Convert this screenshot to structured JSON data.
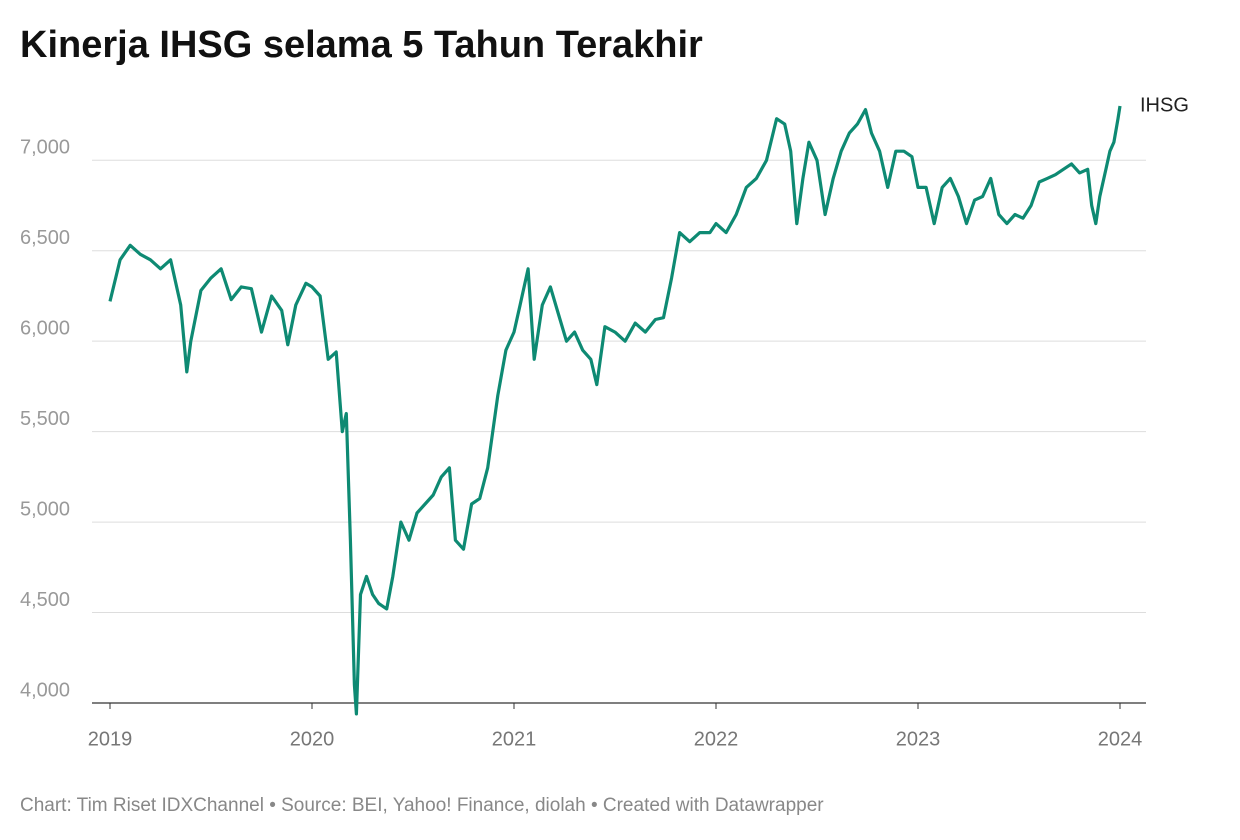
{
  "chart_data": {
    "type": "line",
    "title": "Kinerja IHSG selama 5 Tahun Terakhir",
    "source": "Chart: Tim Riset IDXChannel • Source: BEI, Yahoo! Finance, diolah • Created with Datawrapper",
    "x": [
      2019.0,
      2019.05,
      2019.1,
      2019.15,
      2019.2,
      2019.25,
      2019.3,
      2019.35,
      2019.38,
      2019.4,
      2019.45,
      2019.5,
      2019.55,
      2019.6,
      2019.65,
      2019.7,
      2019.75,
      2019.8,
      2019.85,
      2019.88,
      2019.92,
      2019.97,
      2020.0,
      2020.04,
      2020.08,
      2020.12,
      2020.15,
      2020.17,
      2020.19,
      2020.21,
      2020.22,
      2020.24,
      2020.27,
      2020.3,
      2020.33,
      2020.37,
      2020.4,
      2020.44,
      2020.48,
      2020.52,
      2020.56,
      2020.6,
      2020.64,
      2020.68,
      2020.71,
      2020.75,
      2020.79,
      2020.83,
      2020.87,
      2020.92,
      2020.96,
      2021.0,
      2021.03,
      2021.07,
      2021.1,
      2021.14,
      2021.18,
      2021.22,
      2021.26,
      2021.3,
      2021.34,
      2021.38,
      2021.41,
      2021.45,
      2021.5,
      2021.55,
      2021.6,
      2021.65,
      2021.7,
      2021.74,
      2021.78,
      2021.82,
      2021.87,
      2021.92,
      2021.97,
      2022.0,
      2022.05,
      2022.1,
      2022.15,
      2022.2,
      2022.25,
      2022.3,
      2022.34,
      2022.37,
      2022.4,
      2022.43,
      2022.46,
      2022.5,
      2022.54,
      2022.58,
      2022.62,
      2022.66,
      2022.7,
      2022.74,
      2022.77,
      2022.81,
      2022.85,
      2022.89,
      2022.93,
      2022.97,
      2023.0,
      2023.04,
      2023.08,
      2023.12,
      2023.16,
      2023.2,
      2023.24,
      2023.28,
      2023.32,
      2023.36,
      2023.4,
      2023.44,
      2023.48,
      2023.52,
      2023.56,
      2023.6,
      2023.64,
      2023.68,
      2023.72,
      2023.76,
      2023.8,
      2023.84,
      2023.86,
      2023.88,
      2023.9,
      2023.93,
      2023.95,
      2023.97,
      2023.99,
      2024.0
    ],
    "series": [
      {
        "name": "IHSG",
        "color": "#0e8a73",
        "values": [
          6220,
          6450,
          6530,
          6480,
          6450,
          6400,
          6450,
          6200,
          5830,
          6000,
          6280,
          6350,
          6400,
          6230,
          6300,
          6290,
          6050,
          6250,
          6170,
          5980,
          6200,
          6320,
          6300,
          6250,
          5900,
          5940,
          5500,
          5600,
          4900,
          4100,
          3940,
          4600,
          4700,
          4600,
          4550,
          4520,
          4700,
          5000,
          4900,
          5050,
          5100,
          5150,
          5250,
          5300,
          4900,
          4850,
          5100,
          5130,
          5300,
          5700,
          5950,
          6050,
          6200,
          6400,
          5900,
          6200,
          6300,
          6150,
          6000,
          6050,
          5950,
          5900,
          5760,
          6080,
          6050,
          6000,
          6100,
          6050,
          6120,
          6130,
          6350,
          6600,
          6550,
          6600,
          6600,
          6650,
          6600,
          6700,
          6850,
          6900,
          7000,
          7230,
          7200,
          7050,
          6650,
          6900,
          7100,
          7000,
          6700,
          6900,
          7050,
          7150,
          7200,
          7280,
          7150,
          7050,
          6850,
          7050,
          7050,
          7020,
          6850,
          6850,
          6650,
          6850,
          6900,
          6800,
          6650,
          6780,
          6800,
          6900,
          6700,
          6650,
          6700,
          6680,
          6750,
          6880,
          6900,
          6920,
          6950,
          6980,
          6930,
          6950,
          6750,
          6650,
          6800,
          6950,
          7050,
          7100,
          7230,
          7300
        ]
      }
    ],
    "xlim": [
      2019,
      2024
    ],
    "xticks": [
      2019,
      2020,
      2021,
      2022,
      2023,
      2024
    ],
    "ylim": [
      4000,
      7300
    ],
    "yticks": [
      {
        "value": 4000,
        "label": "4,000"
      },
      {
        "value": 4500,
        "label": "4,500"
      },
      {
        "value": 5000,
        "label": "5,000"
      },
      {
        "value": 5500,
        "label": "5,500"
      },
      {
        "value": 6000,
        "label": "6,000"
      },
      {
        "value": 6500,
        "label": "6,500"
      },
      {
        "value": 7000,
        "label": "7,000"
      }
    ],
    "grid": true
  }
}
